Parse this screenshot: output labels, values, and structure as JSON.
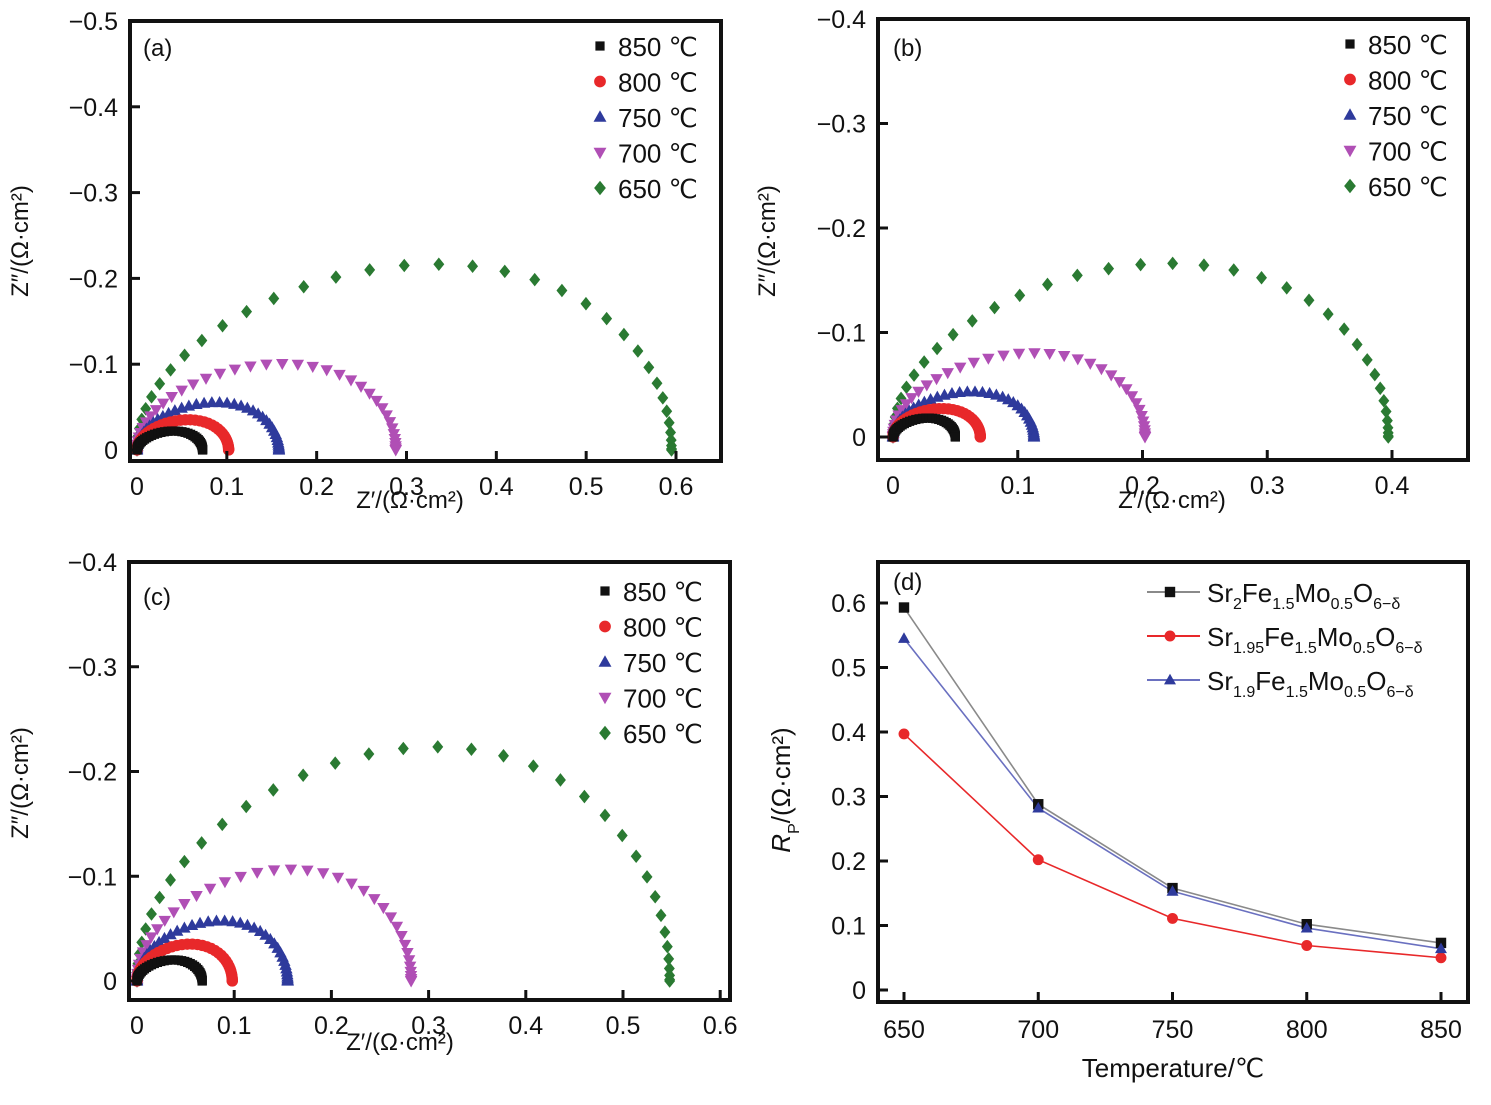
{
  "chart_data": [
    {
      "panel": "(a)",
      "type": "scatter",
      "title": "",
      "xlabel": "Z'/(Ω·cm²)",
      "ylabel": "Z''/(Ω·cm²)",
      "xlim": [
        -0.005,
        0.65
      ],
      "ylim": [
        0.012,
        -0.5
      ],
      "xticks": [
        "0",
        "0.1",
        "0.2",
        "0.3",
        "0.4",
        "0.5",
        "0.6"
      ],
      "xtick_values": [
        0,
        0.1,
        0.2,
        0.3,
        0.4,
        0.5,
        0.6
      ],
      "yticks": [
        "0",
        "−0.1",
        "−0.2",
        "−0.3",
        "−0.4",
        "−0.5"
      ],
      "ytick_values": [
        0,
        -0.1,
        -0.2,
        -0.3,
        -0.4,
        -0.5
      ],
      "legend_position": "top-right",
      "series": [
        {
          "name": "850 ℃",
          "marker": "square",
          "color": "#111111",
          "Rp": 0.073,
          "peak": 0.022,
          "arc_start": 0.0
        },
        {
          "name": "800 ℃",
          "marker": "circle",
          "color": "#e8282a",
          "Rp": 0.102,
          "peak": 0.035,
          "arc_start": 0.0
        },
        {
          "name": "750 ℃",
          "marker": "triangle-up",
          "color": "#2e3a9c",
          "Rp": 0.158,
          "peak": 0.055,
          "arc_start": 0.0
        },
        {
          "name": "700 ℃",
          "marker": "triangle-down",
          "color": "#b04fb5",
          "Rp": 0.288,
          "peak": 0.1,
          "arc_start": 0.0
        },
        {
          "name": "650 ℃",
          "marker": "diamond",
          "color": "#2a7a32",
          "Rp": 0.595,
          "peak": 0.215,
          "arc_start": 0.0
        }
      ]
    },
    {
      "panel": "(b)",
      "type": "scatter",
      "title": "",
      "xlabel": "Z'/(Ω·cm²)",
      "ylabel": "Z''/(Ω·cm²)",
      "xlim": [
        -0.01,
        0.45
      ],
      "ylim": [
        0.022,
        -0.4
      ],
      "xticks": [
        "0",
        "0.1",
        "0.2",
        "0.3",
        "0.4"
      ],
      "xtick_values": [
        0,
        0.1,
        0.2,
        0.3,
        0.4
      ],
      "yticks": [
        "0",
        "−0.1",
        "−0.2",
        "−0.3",
        "−0.4"
      ],
      "ytick_values": [
        0,
        -0.1,
        -0.2,
        -0.3,
        -0.4
      ],
      "legend_position": "top-right",
      "series": [
        {
          "name": "850 ℃",
          "marker": "square",
          "color": "#111111",
          "Rp": 0.05,
          "peak": 0.018,
          "arc_start": 0.0
        },
        {
          "name": "800 ℃",
          "marker": "circle",
          "color": "#e8282a",
          "Rp": 0.07,
          "peak": 0.027,
          "arc_start": 0.0
        },
        {
          "name": "750 ℃",
          "marker": "triangle-up",
          "color": "#2e3a9c",
          "Rp": 0.113,
          "peak": 0.043,
          "arc_start": 0.0
        },
        {
          "name": "700 ℃",
          "marker": "triangle-down",
          "color": "#b04fb5",
          "Rp": 0.202,
          "peak": 0.08,
          "arc_start": 0.0
        },
        {
          "name": "650 ℃",
          "marker": "diamond",
          "color": "#2a7a32",
          "Rp": 0.397,
          "peak": 0.165,
          "arc_start": 0.0
        }
      ]
    },
    {
      "panel": "(c)",
      "type": "scatter",
      "title": "",
      "xlabel": "Z'/(Ω·cm²)",
      "ylabel": "Z''/(Ω·cm²)",
      "xlim": [
        -0.01,
        0.6
      ],
      "ylim": [
        0.018,
        -0.4
      ],
      "xticks": [
        "0",
        "0.1",
        "0.2",
        "0.3",
        "0.4",
        "0.5",
        "0.6"
      ],
      "xtick_values": [
        0,
        0.1,
        0.2,
        0.3,
        0.4,
        0.5,
        0.6
      ],
      "yticks": [
        "0",
        "−0.1",
        "−0.2",
        "−0.3",
        "−0.4"
      ],
      "ytick_values": [
        0,
        -0.1,
        -0.2,
        -0.3,
        -0.4
      ],
      "legend_position": "top-right",
      "series": [
        {
          "name": "850 ℃",
          "marker": "square",
          "color": "#111111",
          "Rp": 0.067,
          "peak": 0.02,
          "arc_start": 0.0
        },
        {
          "name": "800 ℃",
          "marker": "circle",
          "color": "#e8282a",
          "Rp": 0.098,
          "peak": 0.035,
          "arc_start": 0.0
        },
        {
          "name": "750 ℃",
          "marker": "triangle-up",
          "color": "#2e3a9c",
          "Rp": 0.155,
          "peak": 0.057,
          "arc_start": 0.0
        },
        {
          "name": "700 ℃",
          "marker": "triangle-down",
          "color": "#b04fb5",
          "Rp": 0.282,
          "peak": 0.106,
          "arc_start": 0.0
        },
        {
          "name": "650 ℃",
          "marker": "diamond",
          "color": "#2a7a32",
          "Rp": 0.548,
          "peak": 0.222,
          "arc_start": 0.0
        }
      ]
    },
    {
      "panel": "(d)",
      "type": "line",
      "title": "",
      "xlabel": "Temperature/℃",
      "ylabel": "RP/(Ω·cm²)",
      "x": [
        650,
        700,
        750,
        800,
        850
      ],
      "xlim": [
        640,
        860
      ],
      "ylim": [
        -0.03,
        0.65
      ],
      "xticks": [
        "650",
        "700",
        "750",
        "800",
        "850"
      ],
      "yticks": [
        "0",
        "0.1",
        "0.2",
        "0.3",
        "0.4",
        "0.5",
        "0.6"
      ],
      "ytick_values": [
        0,
        0.1,
        0.2,
        0.3,
        0.4,
        0.5,
        0.6
      ],
      "legend_position": "top-right",
      "series": [
        {
          "name": "Sr2Fe1.5Mo0.5O6−δ",
          "sr": "2",
          "marker": "square",
          "color": "#111111",
          "line_color": "#8a8a8a",
          "values": [
            0.593,
            0.288,
            0.158,
            0.102,
            0.073
          ]
        },
        {
          "name": "Sr1.95Fe1.5Mo0.5O6−δ",
          "sr": "1.95",
          "marker": "circle",
          "color": "#e8282a",
          "line_color": "#e8282a",
          "values": [
            0.397,
            0.202,
            0.111,
            0.069,
            0.05
          ]
        },
        {
          "name": "Sr1.9Fe1.5Mo0.5O6−δ",
          "sr": "1.9",
          "marker": "triangle-up",
          "color": "#2e3a9c",
          "line_color": "#6a70c0",
          "values": [
            0.545,
            0.282,
            0.153,
            0.096,
            0.064
          ]
        }
      ]
    }
  ],
  "labels": {
    "a": "(a)",
    "b": "(b)",
    "c": "(c)",
    "d": "(d)",
    "nyquist_x": "Z′/(Ω·cm²)",
    "nyquist_y": "Z″/(Ω·cm²)",
    "d_x": "Temperature/℃",
    "d_y": "RP/(Ω·cm²)"
  }
}
